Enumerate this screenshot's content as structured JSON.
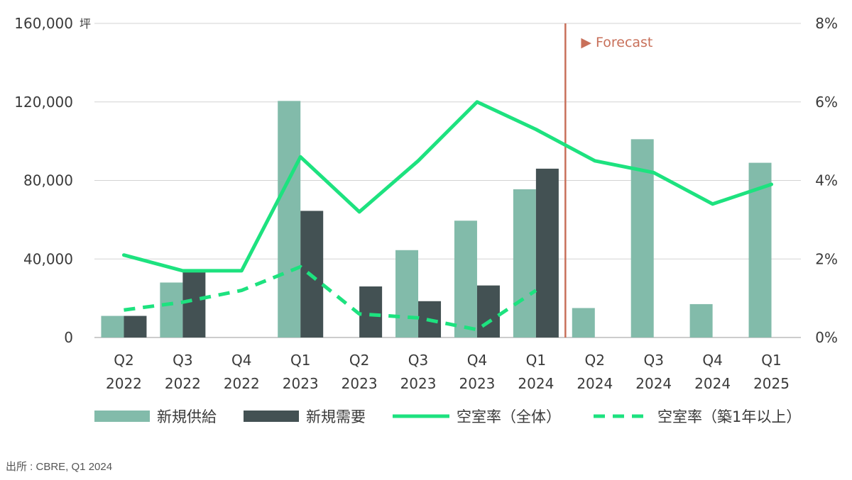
{
  "chart_data": {
    "type": "bar",
    "categories": [
      [
        "Q2",
        "2022"
      ],
      [
        "Q3",
        "2022"
      ],
      [
        "Q4",
        "2022"
      ],
      [
        "Q1",
        "2023"
      ],
      [
        "Q2",
        "2023"
      ],
      [
        "Q3",
        "2023"
      ],
      [
        "Q4",
        "2023"
      ],
      [
        "Q1",
        "2024"
      ],
      [
        "Q2",
        "2024"
      ],
      [
        "Q3",
        "2024"
      ],
      [
        "Q4",
        "2024"
      ],
      [
        "Q1",
        "2025"
      ]
    ],
    "y_unit": "坪",
    "ylim": [
      0,
      160000
    ],
    "y_ticks": [
      0,
      40000,
      80000,
      120000,
      160000
    ],
    "y_tick_labels": [
      "0",
      "40,000",
      "80,000",
      "120,000",
      "160,000"
    ],
    "y2lim": [
      0,
      8
    ],
    "y2_ticks": [
      0,
      2,
      4,
      6,
      8
    ],
    "y2_tick_labels": [
      "0%",
      "2%",
      "4%",
      "6%",
      "8%"
    ],
    "grid": true,
    "forecast_label": "▶ Forecast",
    "forecast_after_category": "Q1 2024",
    "series": [
      {
        "name": "新規供給",
        "type": "bar",
        "axis": "left",
        "color": "#82bbaa",
        "values": [
          11000,
          28000,
          0,
          120500,
          0,
          44500,
          59500,
          75500,
          15000,
          101000,
          17000,
          89000
        ]
      },
      {
        "name": "新規需要",
        "type": "bar",
        "axis": "left",
        "color": "#435153",
        "values": [
          11000,
          33500,
          0,
          64500,
          26000,
          18500,
          26500,
          86000,
          null,
          null,
          null,
          null
        ]
      },
      {
        "name": "空室率（全体）",
        "type": "line",
        "axis": "right",
        "color": "#1de27f",
        "dash": false,
        "values": [
          2.1,
          1.7,
          1.7,
          4.6,
          3.2,
          4.5,
          6.0,
          5.3,
          4.5,
          4.2,
          3.4,
          3.9
        ]
      },
      {
        "name": "空室率（築1年以上）",
        "type": "line",
        "axis": "right",
        "color": "#1de27f",
        "dash": true,
        "values": [
          0.7,
          0.9,
          1.2,
          1.8,
          0.6,
          0.5,
          0.2,
          1.2,
          null,
          null,
          null,
          null
        ]
      }
    ],
    "legend_position": "bottom"
  },
  "source": "出所 : CBRE, Q1 2024"
}
